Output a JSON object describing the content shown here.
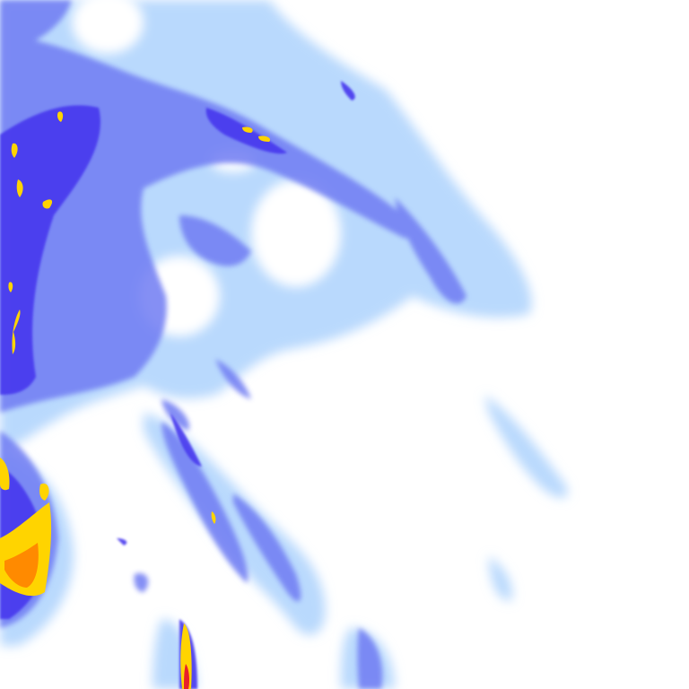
{
  "map": {
    "type": "precipitation-radar-tile",
    "colors": {
      "background": "#ffffff",
      "very_light": "#cfe6ff",
      "light": "#a9cffc",
      "moderate": "#7f9cf5",
      "heavy": "#4a3cf0",
      "very_heavy": "#2a1fd6",
      "intense": "#ffd400",
      "extreme": "#ff8a00",
      "severe": "#e8202a"
    }
  }
}
